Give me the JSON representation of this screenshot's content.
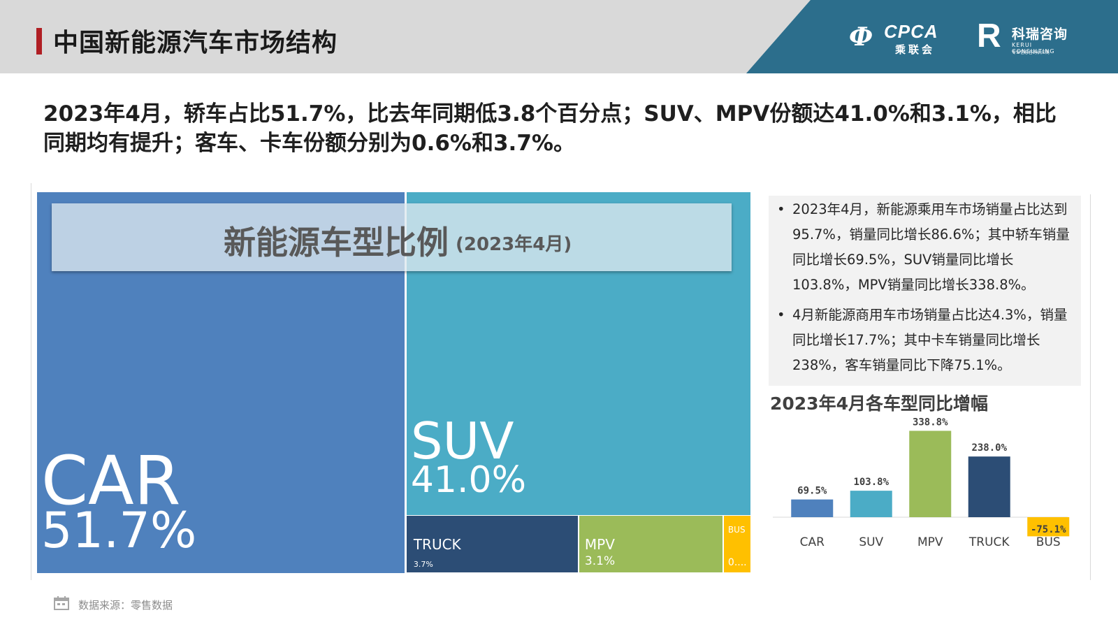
{
  "header": {
    "title": "中国新能源汽车市场结构",
    "logo_cpca": {
      "mark": "Ф",
      "name": "CPCA",
      "cn": "乘联会"
    },
    "logo_kerui": {
      "mark": "R",
      "cn": "科瑞咨询",
      "en": "KERUI CONSULTING",
      "sub": "专业信息咨询供应商"
    }
  },
  "summary": "2023年4月，轿车占比51.7%，比去年同期低3.8个百分点；SUV、MPV份额达41.0%和3.1%，相比同期均有提升；客车、卡车份额分别为0.6%和3.7%。",
  "treemap": {
    "title": "新能源车型比例",
    "title_date": "(2023年4月)"
  },
  "chart_data": [
    {
      "type": "treemap",
      "title": "新能源车型比例(2023年4月)",
      "items": [
        {
          "name": "CAR",
          "value": 51.7,
          "label": "51.7%",
          "color": "#4f81bd"
        },
        {
          "name": "SUV",
          "value": 41.0,
          "label": "41.0%",
          "color": "#4bacc6"
        },
        {
          "name": "TRUCK",
          "value": 3.7,
          "label": "3.7%",
          "color": "#2c4d75"
        },
        {
          "name": "MPV",
          "value": 3.1,
          "label": "3.1%",
          "color": "#9bbb59"
        },
        {
          "name": "BUS",
          "value": 0.6,
          "label": "0....",
          "color": "#ffc000"
        }
      ]
    },
    {
      "type": "bar",
      "title": "2023年4月各车型同比增幅",
      "categories": [
        "CAR",
        "SUV",
        "MPV",
        "TRUCK",
        "BUS"
      ],
      "values": [
        69.5,
        103.8,
        338.8,
        238.0,
        -75.1
      ],
      "value_labels": [
        "69.5%",
        "103.8%",
        "338.8%",
        "238.0%",
        "-75.1%"
      ],
      "colors": [
        "#4f81bd",
        "#4bacc6",
        "#9bbb59",
        "#2c4d75",
        "#ffc000"
      ],
      "ylim": [
        -80,
        340
      ],
      "grid": false
    }
  ],
  "bullets": [
    "2023年4月，新能源乘用车市场销量占比达到95.7%，销量同比增长86.6%；其中轿车销量同比增长69.5%，SUV销量同比增长103.8%，MPV销量同比增长338.8%。",
    "4月新能源商用车市场销量占比达4.3%，销量同比增长17.7%；其中卡车销量同比增长238%，客车销量同比下降75.1%。"
  ],
  "bullet_glyph": "•",
  "footer": {
    "source": "数据来源：零售数据",
    "icon": "calendar-icon"
  }
}
